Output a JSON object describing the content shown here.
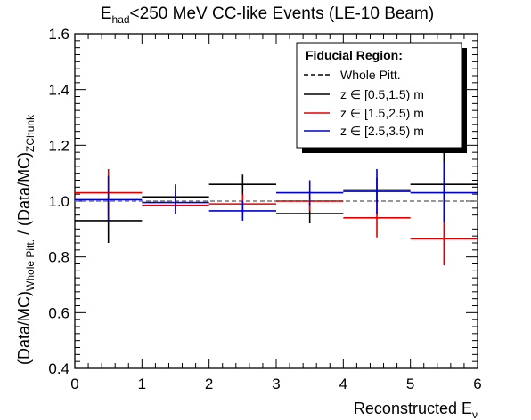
{
  "chart_data": {
    "type": "scatter",
    "title_main": "E",
    "title_sub": "had",
    "title_rest": "<250 MeV CC-like Events (LE-10 Beam)",
    "xlabel_main": "Reconstructed E",
    "xlabel_sub": "ν",
    "ylabel_a": "(Data/MC)",
    "ylabel_a_sub": "Whole Pitt.",
    "ylabel_mid": " / (Data/MC)",
    "ylabel_b_sub": "ZChunk",
    "xlim": [
      0,
      6
    ],
    "ylim": [
      0.4,
      1.6
    ],
    "x_ticks": [
      "0",
      "1",
      "2",
      "3",
      "4",
      "5",
      "6"
    ],
    "x_tick_values": [
      0,
      1,
      2,
      3,
      4,
      5,
      6
    ],
    "y_ticks": [
      "0.4",
      "0.6",
      "0.8",
      "1.0",
      "1.2",
      "1.4",
      "1.6"
    ],
    "y_tick_values": [
      0.4,
      0.6,
      0.8,
      1.0,
      1.2,
      1.4,
      1.6
    ],
    "reference_line": {
      "y": 1.0,
      "label": "Whole Pitt.",
      "color": "#777777",
      "style": "dashed"
    },
    "legend": {
      "title": "Fiducial Region:",
      "placement": "top-right",
      "entries": [
        "Whole Pitt.",
        "z ∈ [0.5,1.5) m",
        "z ∈ [1.5,2.5) m",
        "z ∈ [2.5,3.5) m"
      ]
    },
    "series": [
      {
        "name": "z ∈ [0.5,1.5) m",
        "color": "#000000",
        "points": [
          {
            "x": 0.5,
            "xerr": 0.5,
            "y": 0.93,
            "ylo": 0.85,
            "yhi": 1.01
          },
          {
            "x": 1.5,
            "xerr": 0.5,
            "y": 1.015,
            "ylo": 0.97,
            "yhi": 1.06
          },
          {
            "x": 2.5,
            "xerr": 0.5,
            "y": 1.06,
            "ylo": 1.02,
            "yhi": 1.095
          },
          {
            "x": 3.5,
            "xerr": 0.5,
            "y": 0.955,
            "ylo": 0.92,
            "yhi": 0.995
          },
          {
            "x": 4.5,
            "xerr": 0.5,
            "y": 1.04,
            "ylo": 0.995,
            "yhi": 1.085
          },
          {
            "x": 5.5,
            "xerr": 0.5,
            "y": 1.06,
            "ylo": 0.955,
            "yhi": 1.175
          }
        ]
      },
      {
        "name": "z ∈ [1.5,2.5) m",
        "color": "#e00000",
        "points": [
          {
            "x": 0.5,
            "xerr": 0.5,
            "y": 1.03,
            "ylo": 0.945,
            "yhi": 1.115
          },
          {
            "x": 1.5,
            "xerr": 0.5,
            "y": 0.985,
            "ylo": 0.955,
            "yhi": 1.015
          },
          {
            "x": 2.5,
            "xerr": 0.5,
            "y": 0.99,
            "ylo": 0.955,
            "yhi": 1.025
          },
          {
            "x": 3.5,
            "xerr": 0.5,
            "y": 1.0,
            "ylo": 0.965,
            "yhi": 1.035
          },
          {
            "x": 4.5,
            "xerr": 0.5,
            "y": 0.94,
            "ylo": 0.87,
            "yhi": 1.005
          },
          {
            "x": 5.5,
            "xerr": 0.5,
            "y": 0.865,
            "ylo": 0.77,
            "yhi": 0.96
          }
        ]
      },
      {
        "name": "z ∈ [2.5,3.5) m",
        "color": "#0000d0",
        "points": [
          {
            "x": 0.5,
            "xerr": 0.5,
            "y": 1.005,
            "ylo": 0.925,
            "yhi": 1.09
          },
          {
            "x": 1.5,
            "xerr": 0.5,
            "y": 0.995,
            "ylo": 0.955,
            "yhi": 1.035
          },
          {
            "x": 2.5,
            "xerr": 0.5,
            "y": 0.965,
            "ylo": 0.93,
            "yhi": 1.0
          },
          {
            "x": 3.5,
            "xerr": 0.5,
            "y": 1.03,
            "ylo": 0.985,
            "yhi": 1.075
          },
          {
            "x": 4.5,
            "xerr": 0.5,
            "y": 1.035,
            "ylo": 0.955,
            "yhi": 1.115
          },
          {
            "x": 5.5,
            "xerr": 0.5,
            "y": 1.03,
            "ylo": 0.925,
            "yhi": 1.14
          }
        ]
      }
    ]
  }
}
